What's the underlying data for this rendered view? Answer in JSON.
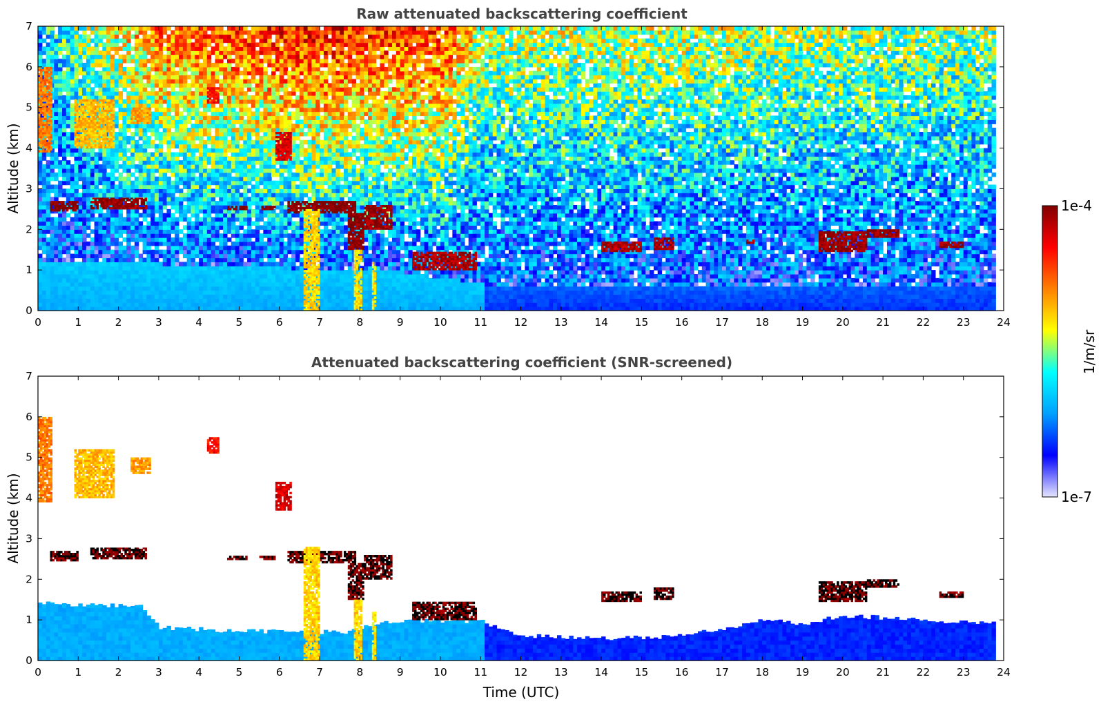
{
  "chart_data": [
    {
      "type": "heatmap",
      "title": "Raw attenuated backscattering coefficient",
      "xlabel": "",
      "ylabel": "Altitude (km)",
      "xlim": [
        0,
        24
      ],
      "ylim": [
        0,
        7
      ],
      "x_ticks": [
        "0",
        "1",
        "2",
        "3",
        "4",
        "5",
        "6",
        "7",
        "8",
        "9",
        "10",
        "11",
        "12",
        "13",
        "14",
        "15",
        "16",
        "17",
        "18",
        "19",
        "20",
        "21",
        "22",
        "23",
        "24"
      ],
      "y_ticks": [
        "0",
        "1",
        "2",
        "3",
        "4",
        "5",
        "6",
        "7"
      ],
      "data_extent_hours": [
        0,
        23.8
      ],
      "background": {
        "boundary_layer_top_km": [
          [
            0,
            1.2
          ],
          [
            3,
            1.1
          ],
          [
            6,
            1.0
          ],
          [
            9,
            0.9
          ],
          [
            11,
            0.6
          ],
          [
            15,
            0.6
          ],
          [
            20,
            0.6
          ],
          [
            23.8,
            0.6
          ]
        ],
        "noise_level_by_hour": [
          [
            0,
            0.35
          ],
          [
            3,
            0.75
          ],
          [
            7,
            0.85
          ],
          [
            10,
            0.8
          ],
          [
            11,
            0.55
          ],
          [
            16,
            0.55
          ],
          [
            23.8,
            0.5
          ]
        ]
      },
      "features": [
        {
          "kind": "cloud",
          "x0": 0.3,
          "x1": 1.0,
          "y0": 2.45,
          "y1": 2.7,
          "level": 1.0
        },
        {
          "kind": "cloud",
          "x0": 1.3,
          "x1": 2.7,
          "y0": 2.5,
          "y1": 2.78,
          "level": 0.98
        },
        {
          "kind": "cloud",
          "x0": 4.7,
          "x1": 5.2,
          "y0": 2.48,
          "y1": 2.58,
          "level": 1.0
        },
        {
          "kind": "cloud",
          "x0": 5.5,
          "x1": 5.9,
          "y0": 2.48,
          "y1": 2.58,
          "level": 1.0
        },
        {
          "kind": "cloud",
          "x0": 6.2,
          "x1": 7.9,
          "y0": 2.4,
          "y1": 2.7,
          "level": 1.0
        },
        {
          "kind": "cloud",
          "x0": 7.7,
          "x1": 8.1,
          "y0": 1.5,
          "y1": 2.4,
          "level": 1.0
        },
        {
          "kind": "cloud",
          "x0": 8.1,
          "x1": 8.8,
          "y0": 2.0,
          "y1": 2.6,
          "level": 0.97
        },
        {
          "kind": "cloud",
          "x0": 9.3,
          "x1": 10.9,
          "y0": 1.0,
          "y1": 1.45,
          "level": 0.95
        },
        {
          "kind": "cloud",
          "x0": 14.0,
          "x1": 15.0,
          "y0": 1.45,
          "y1": 1.7,
          "level": 0.95
        },
        {
          "kind": "cloud",
          "x0": 15.3,
          "x1": 15.8,
          "y0": 1.5,
          "y1": 1.8,
          "level": 0.95
        },
        {
          "kind": "cloud",
          "x0": 17.6,
          "x1": 17.8,
          "y0": 1.65,
          "y1": 1.75,
          "level": 0.95
        },
        {
          "kind": "cloud",
          "x0": 19.4,
          "x1": 20.6,
          "y0": 1.45,
          "y1": 1.95,
          "level": 0.97
        },
        {
          "kind": "cloud",
          "x0": 20.6,
          "x1": 21.4,
          "y0": 1.8,
          "y1": 2.0,
          "level": 0.97
        },
        {
          "kind": "cloud",
          "x0": 22.4,
          "x1": 23.0,
          "y0": 1.55,
          "y1": 1.7,
          "level": 0.97
        },
        {
          "kind": "aerosol",
          "x0": 0.0,
          "x1": 0.35,
          "y0": 3.9,
          "y1": 6.0,
          "level": 0.72
        },
        {
          "kind": "aerosol",
          "x0": 0.9,
          "x1": 1.9,
          "y0": 4.0,
          "y1": 5.2,
          "level": 0.65
        },
        {
          "kind": "aerosol",
          "x0": 2.3,
          "x1": 2.8,
          "y0": 4.6,
          "y1": 5.0,
          "level": 0.68
        },
        {
          "kind": "aerosol",
          "x0": 4.2,
          "x1": 4.5,
          "y0": 5.1,
          "y1": 5.5,
          "level": 0.85
        },
        {
          "kind": "aerosol",
          "x0": 5.9,
          "x1": 6.3,
          "y0": 3.7,
          "y1": 4.4,
          "level": 0.9
        },
        {
          "kind": "aerosol",
          "x0": 6.6,
          "x1": 7.0,
          "y0": 0.0,
          "y1": 2.5,
          "level": 0.62
        },
        {
          "kind": "aerosol",
          "x0": 7.85,
          "x1": 8.05,
          "y0": 0.0,
          "y1": 1.5,
          "level": 0.6
        },
        {
          "kind": "aerosol",
          "x0": 8.3,
          "x1": 8.4,
          "y0": 0.0,
          "y1": 1.2,
          "level": 0.6
        }
      ]
    },
    {
      "type": "heatmap",
      "title": "Attenuated backscattering coefficient (SNR-screened)",
      "xlabel": "Time (UTC)",
      "ylabel": "Altitude (km)",
      "xlim": [
        0,
        24
      ],
      "ylim": [
        0,
        7
      ],
      "x_ticks": [
        "0",
        "1",
        "2",
        "3",
        "4",
        "5",
        "6",
        "7",
        "8",
        "9",
        "10",
        "11",
        "12",
        "13",
        "14",
        "15",
        "16",
        "17",
        "18",
        "19",
        "20",
        "21",
        "22",
        "23",
        "24"
      ],
      "y_ticks": [
        "0",
        "1",
        "2",
        "3",
        "4",
        "5",
        "6",
        "7"
      ],
      "data_extent_hours": [
        0,
        23.8
      ],
      "screened_layer_top_km": [
        [
          0,
          1.4
        ],
        [
          2.5,
          1.35
        ],
        [
          3,
          0.8
        ],
        [
          4.5,
          0.75
        ],
        [
          6,
          0.7
        ],
        [
          7.5,
          0.7
        ],
        [
          9,
          1.0
        ],
        [
          11,
          0.95
        ],
        [
          12,
          0.6
        ],
        [
          15,
          0.55
        ],
        [
          17,
          0.75
        ],
        [
          18,
          1.0
        ],
        [
          19,
          0.9
        ],
        [
          20,
          1.1
        ],
        [
          22,
          1.0
        ],
        [
          23.8,
          0.9
        ]
      ],
      "features": [
        {
          "kind": "cloud",
          "x0": 0.3,
          "x1": 1.0,
          "y0": 2.45,
          "y1": 2.7,
          "level": 1.0
        },
        {
          "kind": "cloud",
          "x0": 1.3,
          "x1": 2.7,
          "y0": 2.5,
          "y1": 2.78,
          "level": 1.0
        },
        {
          "kind": "cloud",
          "x0": 4.7,
          "x1": 5.2,
          "y0": 2.48,
          "y1": 2.58,
          "level": 1.0
        },
        {
          "kind": "cloud",
          "x0": 5.5,
          "x1": 5.9,
          "y0": 2.48,
          "y1": 2.58,
          "level": 1.0
        },
        {
          "kind": "cloud",
          "x0": 6.2,
          "x1": 7.9,
          "y0": 2.4,
          "y1": 2.7,
          "level": 1.0
        },
        {
          "kind": "cloud",
          "x0": 7.7,
          "x1": 8.1,
          "y0": 1.5,
          "y1": 2.4,
          "level": 1.0
        },
        {
          "kind": "cloud",
          "x0": 8.1,
          "x1": 8.8,
          "y0": 2.0,
          "y1": 2.6,
          "level": 1.0
        },
        {
          "kind": "cloud",
          "x0": 9.3,
          "x1": 10.9,
          "y0": 1.0,
          "y1": 1.45,
          "level": 1.0
        },
        {
          "kind": "cloud",
          "x0": 14.0,
          "x1": 15.0,
          "y0": 1.45,
          "y1": 1.7,
          "level": 1.0
        },
        {
          "kind": "cloud",
          "x0": 15.3,
          "x1": 15.8,
          "y0": 1.5,
          "y1": 1.8,
          "level": 1.0
        },
        {
          "kind": "cloud",
          "x0": 19.4,
          "x1": 20.6,
          "y0": 1.45,
          "y1": 1.95,
          "level": 1.0
        },
        {
          "kind": "cloud",
          "x0": 20.6,
          "x1": 21.4,
          "y0": 1.8,
          "y1": 2.0,
          "level": 1.0
        },
        {
          "kind": "cloud",
          "x0": 22.4,
          "x1": 23.0,
          "y0": 1.55,
          "y1": 1.7,
          "level": 1.0
        },
        {
          "kind": "aerosol",
          "x0": 0.0,
          "x1": 0.35,
          "y0": 3.9,
          "y1": 6.0,
          "level": 0.72
        },
        {
          "kind": "aerosol",
          "x0": 0.9,
          "x1": 1.9,
          "y0": 4.0,
          "y1": 5.2,
          "level": 0.65
        },
        {
          "kind": "aerosol",
          "x0": 2.3,
          "x1": 2.8,
          "y0": 4.6,
          "y1": 5.0,
          "level": 0.68
        },
        {
          "kind": "aerosol",
          "x0": 4.2,
          "x1": 4.5,
          "y0": 5.1,
          "y1": 5.5,
          "level": 0.85
        },
        {
          "kind": "aerosol",
          "x0": 5.9,
          "x1": 6.3,
          "y0": 3.7,
          "y1": 4.4,
          "level": 0.9
        },
        {
          "kind": "aerosol",
          "x0": 6.6,
          "x1": 7.0,
          "y0": 0.0,
          "y1": 2.8,
          "level": 0.62
        },
        {
          "kind": "aerosol",
          "x0": 7.85,
          "x1": 8.05,
          "y0": 0.0,
          "y1": 1.5,
          "level": 0.62
        },
        {
          "kind": "aerosol",
          "x0": 8.3,
          "x1": 8.4,
          "y0": 0.0,
          "y1": 1.2,
          "level": 0.6
        }
      ]
    }
  ],
  "colorbar": {
    "label": "1/m/sr",
    "max_label": "1e-4",
    "min_label": "1e-7",
    "colormap": "jet",
    "stops": [
      "#e6e6ff",
      "#0000ff",
      "#00a0ff",
      "#00ffff",
      "#ffff00",
      "#ff8000",
      "#ff0000",
      "#800000"
    ]
  }
}
